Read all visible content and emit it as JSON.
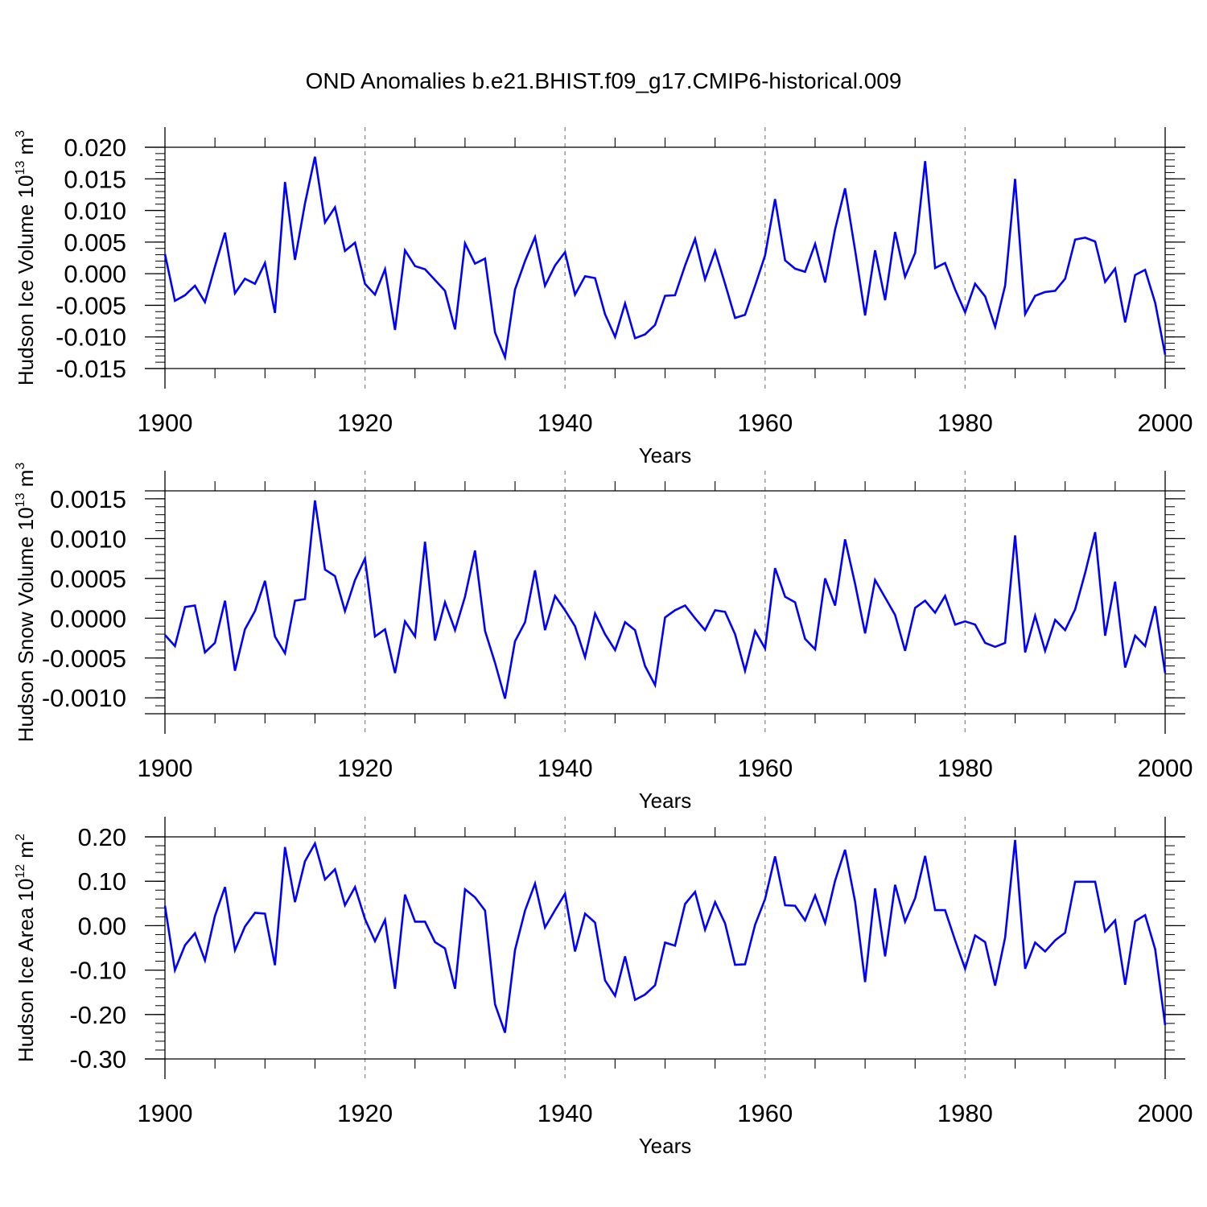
{
  "chart_data": [
    {
      "type": "line",
      "title": "OND Anomalies b.e21.BHIST.f09_g17.CMIP6-historical.009",
      "xlabel": "Years",
      "ylabel": {
        "base": "Hudson Ice Volume 10",
        "exp": "13",
        "unit": " m",
        "unit_exp": "3"
      },
      "xlim": [
        1900,
        2000
      ],
      "ylim": [
        -0.015,
        0.02
      ],
      "x_ticks": [
        1900,
        1920,
        1940,
        1960,
        1980,
        2000
      ],
      "x_tick_labels": [
        "1900",
        "1920",
        "1940",
        "1960",
        "1980",
        "2000"
      ],
      "y_ticks": [
        -0.015,
        -0.01,
        -0.005,
        0.0,
        0.005,
        0.01,
        0.015,
        0.02
      ],
      "y_tick_labels": [
        "-0.015",
        "-0.010",
        "-0.005",
        "0.000",
        "0.005",
        "0.010",
        "0.015",
        "0.020"
      ],
      "y_minor_step": 0.001,
      "grid": "vertical dashed at major x ticks",
      "color": "#0000ff",
      "x": [
        1900,
        1901,
        1902,
        1903,
        1904,
        1905,
        1906,
        1907,
        1908,
        1909,
        1910,
        1911,
        1912,
        1913,
        1914,
        1915,
        1916,
        1917,
        1918,
        1919,
        1920,
        1921,
        1922,
        1923,
        1924,
        1925,
        1926,
        1927,
        1928,
        1929,
        1930,
        1931,
        1932,
        1933,
        1934,
        1935,
        1936,
        1937,
        1938,
        1939,
        1940,
        1941,
        1942,
        1943,
        1944,
        1945,
        1946,
        1947,
        1948,
        1949,
        1950,
        1951,
        1952,
        1953,
        1954,
        1955,
        1956,
        1957,
        1958,
        1959,
        1960,
        1961,
        1962,
        1963,
        1964,
        1965,
        1966,
        1967,
        1968,
        1969,
        1970,
        1971,
        1972,
        1973,
        1974,
        1975,
        1976,
        1977,
        1978,
        1979,
        1980,
        1981,
        1982,
        1983,
        1984,
        1985,
        1986,
        1987,
        1988,
        1989,
        1990,
        1991,
        1992,
        1993,
        1994,
        1995,
        1996,
        1997,
        1998,
        1999,
        2000
      ],
      "values": [
        0.0031,
        -0.0043,
        -0.0034,
        -0.0019,
        -0.0045,
        0.0011,
        0.0065,
        -0.0031,
        -0.0008,
        -0.0016,
        0.0017,
        -0.0062,
        0.0145,
        0.0022,
        0.0111,
        0.0185,
        0.0081,
        0.0105,
        0.0036,
        0.0049,
        -0.0016,
        -0.0033,
        0.0007,
        -0.0089,
        0.0037,
        0.0012,
        0.0007,
        -0.001,
        -0.0027,
        -0.0088,
        0.0048,
        0.0016,
        0.0024,
        -0.0093,
        -0.0132,
        -0.0025,
        0.002,
        0.0058,
        -0.0019,
        0.0013,
        0.0034,
        -0.0033,
        -0.0004,
        -0.0007,
        -0.0064,
        -0.01,
        -0.0047,
        -0.0102,
        -0.0096,
        -0.0081,
        -0.0035,
        -0.0034,
        0.0013,
        0.0055,
        -0.0009,
        0.0036,
        -0.0016,
        -0.007,
        -0.0065,
        -0.0019,
        0.0029,
        0.0118,
        0.0021,
        0.0008,
        0.0003,
        0.0047,
        -0.0014,
        0.007,
        0.0135,
        0.0037,
        -0.0066,
        0.0037,
        -0.0042,
        0.0066,
        -0.0005,
        0.0033,
        0.0178,
        0.0009,
        0.0017,
        -0.0025,
        -0.0061,
        -0.0016,
        -0.0036,
        -0.0084,
        -0.0019,
        0.015,
        -0.0064,
        -0.0035,
        -0.0029,
        -0.0027,
        -0.0008,
        0.0054,
        0.0057,
        0.0051,
        -0.0013,
        0.0008,
        -0.0077,
        -0.0002,
        0.0006,
        -0.0046,
        -0.0128
      ]
    },
    {
      "type": "line",
      "xlabel": "Years",
      "ylabel": {
        "base": "Hudson Snow Volume 10",
        "exp": "13",
        "unit": " m",
        "unit_exp": "3"
      },
      "xlim": [
        1900,
        2000
      ],
      "ylim": [
        -0.0012,
        0.0016
      ],
      "x_ticks": [
        1900,
        1920,
        1940,
        1960,
        1980,
        2000
      ],
      "x_tick_labels": [
        "1900",
        "1920",
        "1940",
        "1960",
        "1980",
        "2000"
      ],
      "y_ticks": [
        -0.001,
        -0.0005,
        0.0,
        0.0005,
        0.001,
        0.0015
      ],
      "y_tick_labels": [
        "-0.0010",
        "-0.0005",
        "0.0000",
        "0.0005",
        "0.0010",
        "0.0015"
      ],
      "y_minor_step": 0.0001,
      "grid": "vertical dashed at major x ticks",
      "color": "#0000ff",
      "x": [
        1900,
        1901,
        1902,
        1903,
        1904,
        1905,
        1906,
        1907,
        1908,
        1909,
        1910,
        1911,
        1912,
        1913,
        1914,
        1915,
        1916,
        1917,
        1918,
        1919,
        1920,
        1921,
        1922,
        1923,
        1924,
        1925,
        1926,
        1927,
        1928,
        1929,
        1930,
        1931,
        1932,
        1933,
        1934,
        1935,
        1936,
        1937,
        1938,
        1939,
        1940,
        1941,
        1942,
        1943,
        1944,
        1945,
        1946,
        1947,
        1948,
        1949,
        1950,
        1951,
        1952,
        1953,
        1954,
        1955,
        1956,
        1957,
        1958,
        1959,
        1960,
        1961,
        1962,
        1963,
        1964,
        1965,
        1966,
        1967,
        1968,
        1969,
        1970,
        1971,
        1972,
        1973,
        1974,
        1975,
        1976,
        1977,
        1978,
        1979,
        1980,
        1981,
        1982,
        1983,
        1984,
        1985,
        1986,
        1987,
        1988,
        1989,
        1990,
        1991,
        1992,
        1993,
        1994,
        1995,
        1996,
        1997,
        1998,
        1999,
        2000
      ],
      "values": [
        -0.00021,
        -0.00035,
        0.00014,
        0.00016,
        -0.00043,
        -0.00031,
        0.00022,
        -0.00066,
        -0.00014,
        9e-05,
        0.00047,
        -0.00023,
        -0.00044,
        0.00022,
        0.00024,
        0.00148,
        0.00061,
        0.00053,
        9e-05,
        0.00048,
        0.00075,
        -0.00023,
        -0.00014,
        -0.00069,
        -4e-05,
        -0.00023,
        0.00096,
        -0.00028,
        0.0002,
        -0.00015,
        0.00027,
        0.00085,
        -0.00016,
        -0.00056,
        -0.00101,
        -0.00029,
        -5e-05,
        0.0006,
        -0.00015,
        0.00028,
        0.0001,
        -0.0001,
        -0.00049,
        6e-05,
        -0.0002,
        -0.0004,
        -5e-05,
        -0.00015,
        -0.0006,
        -0.00084,
        1e-05,
        0.0001,
        0.00016,
        0.0,
        -0.00015,
        0.0001,
        8e-05,
        -0.0002,
        -0.00066,
        -0.00016,
        -0.00038,
        0.00063,
        0.00027,
        0.0002,
        -0.00026,
        -0.00039,
        0.0005,
        0.00016,
        0.00099,
        0.00043,
        -0.00019,
        0.00048,
        0.00026,
        4e-05,
        -0.00041,
        0.00013,
        0.00022,
        7e-05,
        0.00028,
        -8e-05,
        -4e-05,
        -8e-05,
        -0.00031,
        -0.00036,
        -0.00031,
        0.00104,
        -0.00043,
        3e-05,
        -0.00041,
        -2e-05,
        -0.00015,
        0.00011,
        0.00057,
        0.00108,
        -0.00022,
        0.00046,
        -0.00062,
        -0.00022,
        -0.00035,
        0.00015,
        -0.00069
      ]
    },
    {
      "type": "line",
      "xlabel": "Years",
      "ylabel": {
        "base": "Hudson Ice Area 10",
        "exp": "12",
        "unit": " m",
        "unit_exp": "2"
      },
      "xlim": [
        1900,
        2000
      ],
      "ylim": [
        -0.3,
        0.2
      ],
      "x_ticks": [
        1900,
        1920,
        1940,
        1960,
        1980,
        2000
      ],
      "x_tick_labels": [
        "1900",
        "1920",
        "1940",
        "1960",
        "1980",
        "2000"
      ],
      "y_ticks": [
        -0.3,
        -0.2,
        -0.1,
        0.0,
        0.1,
        0.2
      ],
      "y_tick_labels": [
        "-0.30",
        "-0.20",
        "-0.10",
        "0.00",
        "0.10",
        "0.20"
      ],
      "y_minor_step": 0.02,
      "grid": "vertical dashed at major x ticks",
      "color": "#0000ff",
      "x": [
        1900,
        1901,
        1902,
        1903,
        1904,
        1905,
        1906,
        1907,
        1908,
        1909,
        1910,
        1911,
        1912,
        1913,
        1914,
        1915,
        1916,
        1917,
        1918,
        1919,
        1920,
        1921,
        1922,
        1923,
        1924,
        1925,
        1926,
        1927,
        1928,
        1929,
        1930,
        1931,
        1932,
        1933,
        1934,
        1935,
        1936,
        1937,
        1938,
        1939,
        1940,
        1941,
        1942,
        1943,
        1944,
        1945,
        1946,
        1947,
        1948,
        1949,
        1950,
        1951,
        1952,
        1953,
        1954,
        1955,
        1956,
        1957,
        1958,
        1959,
        1960,
        1961,
        1962,
        1963,
        1964,
        1965,
        1966,
        1967,
        1968,
        1969,
        1970,
        1971,
        1972,
        1973,
        1974,
        1975,
        1976,
        1977,
        1978,
        1979,
        1980,
        1981,
        1982,
        1983,
        1984,
        1985,
        1986,
        1987,
        1988,
        1989,
        1990,
        1991,
        1992,
        1993,
        1994,
        1995,
        1996,
        1997,
        1998,
        1999,
        2000
      ],
      "values": [
        0.045,
        -0.1,
        -0.044,
        -0.017,
        -0.078,
        0.022,
        0.087,
        -0.055,
        -0.002,
        0.029,
        0.027,
        -0.089,
        0.177,
        0.053,
        0.145,
        0.185,
        0.104,
        0.127,
        0.046,
        0.087,
        0.015,
        -0.035,
        0.013,
        -0.142,
        0.07,
        0.009,
        0.009,
        -0.037,
        -0.051,
        -0.142,
        0.082,
        0.064,
        0.034,
        -0.177,
        -0.241,
        -0.055,
        0.034,
        0.095,
        -0.004,
        0.035,
        0.072,
        -0.058,
        0.027,
        0.007,
        -0.123,
        -0.158,
        -0.069,
        -0.167,
        -0.155,
        -0.134,
        -0.038,
        -0.045,
        0.049,
        0.076,
        -0.009,
        0.053,
        0.005,
        -0.088,
        -0.087,
        0.002,
        0.06,
        0.156,
        0.046,
        0.045,
        0.012,
        0.068,
        0.006,
        0.101,
        0.171,
        0.054,
        -0.127,
        0.084,
        -0.069,
        0.092,
        0.009,
        0.062,
        0.157,
        0.035,
        0.035,
        -0.033,
        -0.097,
        -0.022,
        -0.037,
        -0.135,
        -0.027,
        0.193,
        -0.097,
        -0.038,
        -0.058,
        -0.033,
        -0.016,
        0.099,
        0.099,
        0.099,
        -0.013,
        0.012,
        -0.133,
        0.01,
        0.024,
        -0.053,
        -0.224
      ]
    }
  ]
}
